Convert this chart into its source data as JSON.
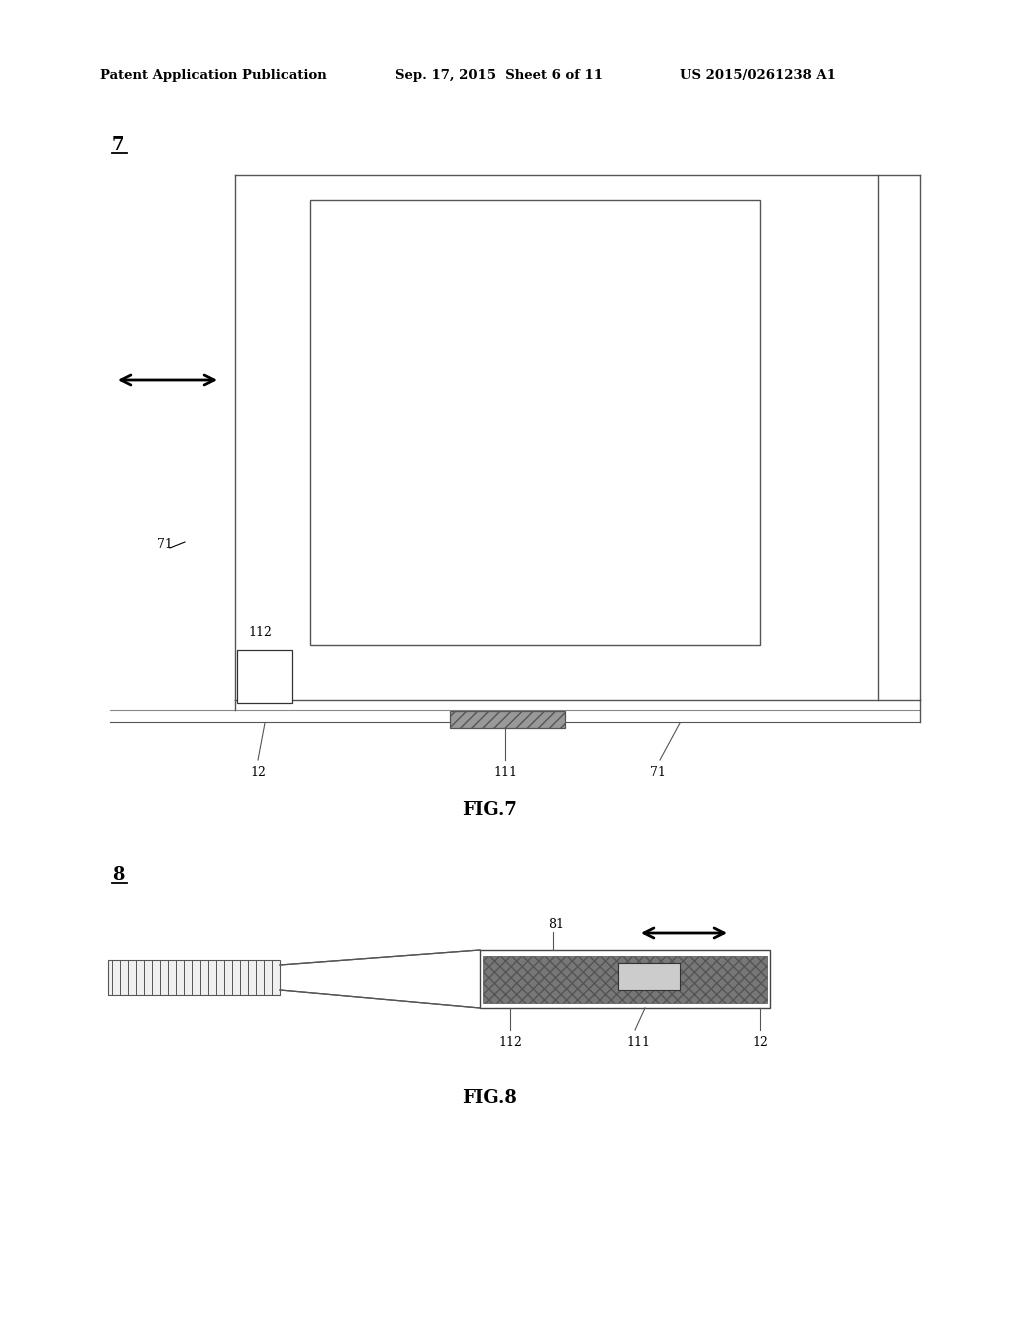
{
  "bg_color": "#ffffff",
  "line_color": "#000000",
  "header_text": "Patent Application Publication",
  "header_date": "Sep. 17, 2015  Sheet 6 of 11",
  "header_patent": "US 2015/0261238 A1",
  "fig7_label": "7",
  "fig7_caption": "FIG.7",
  "fig8_label": "8",
  "fig8_caption": "FIG.8",
  "label_12_fig7": "12",
  "label_111_fig7": "111",
  "label_71_right": "71",
  "label_71_left": "71",
  "label_112_fig7": "112",
  "label_81": "81",
  "label_112_fig8": "112",
  "label_111_fig8": "111",
  "label_12_fig8": "12"
}
